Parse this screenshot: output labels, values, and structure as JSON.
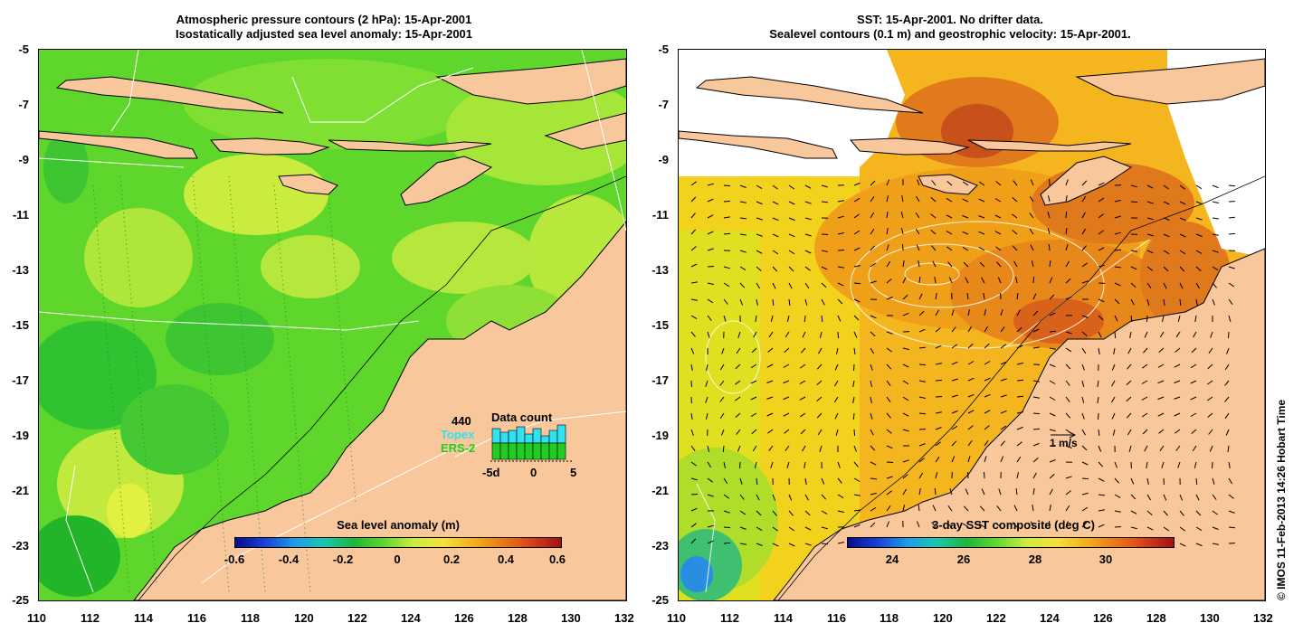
{
  "left_panel": {
    "title_line1": "Atmospheric pressure contours (2 hPa): 15-Apr-2001",
    "title_line2": "Isostatically adjusted sea level anomaly: 15-Apr-2001",
    "colorbar": {
      "title": "Sea level anomaly (m)",
      "ticks": [
        "-0.6",
        "-0.4",
        "-0.2",
        "0",
        "0.2",
        "0.4",
        "0.6"
      ],
      "range": [
        -0.6,
        0.6
      ]
    },
    "data_count": {
      "number": "440",
      "title": "Data count",
      "topex_label": "Topex",
      "ers_label": "ERS-2",
      "axis_labels": [
        "-5d",
        "0",
        "5"
      ],
      "topex_color": "#33e0f0",
      "ers_color": "#22cc22"
    }
  },
  "right_panel": {
    "title_line1": "SST: 15-Apr-2001. No drifter data.",
    "title_line2": "Sealevel contours (0.1 m) and geostrophic velocity: 15-Apr-2001.",
    "colorbar": {
      "title": "3-day SST composite (deg C)",
      "ticks": [
        "24",
        "26",
        "28",
        "30"
      ],
      "range": [
        22.5,
        31.5
      ]
    },
    "velocity_scale": "1 m/s"
  },
  "axes": {
    "lat_ticks": [
      "-5",
      "-7",
      "-9",
      "-11",
      "-13",
      "-15",
      "-17",
      "-19",
      "-21",
      "-23",
      "-25"
    ],
    "lon_ticks": [
      "110",
      "112",
      "114",
      "116",
      "118",
      "120",
      "122",
      "124",
      "126",
      "128",
      "130",
      "132"
    ],
    "lat_range": [
      -25,
      -5
    ],
    "lon_range": [
      110,
      132
    ]
  },
  "credit": "© IMOS 11-Feb-2013 14:26 Hobart Time",
  "colors": {
    "land": "#f9c79c",
    "ocean_sla": "#5ed62c",
    "ocean_sst": "#f5b51e"
  }
}
